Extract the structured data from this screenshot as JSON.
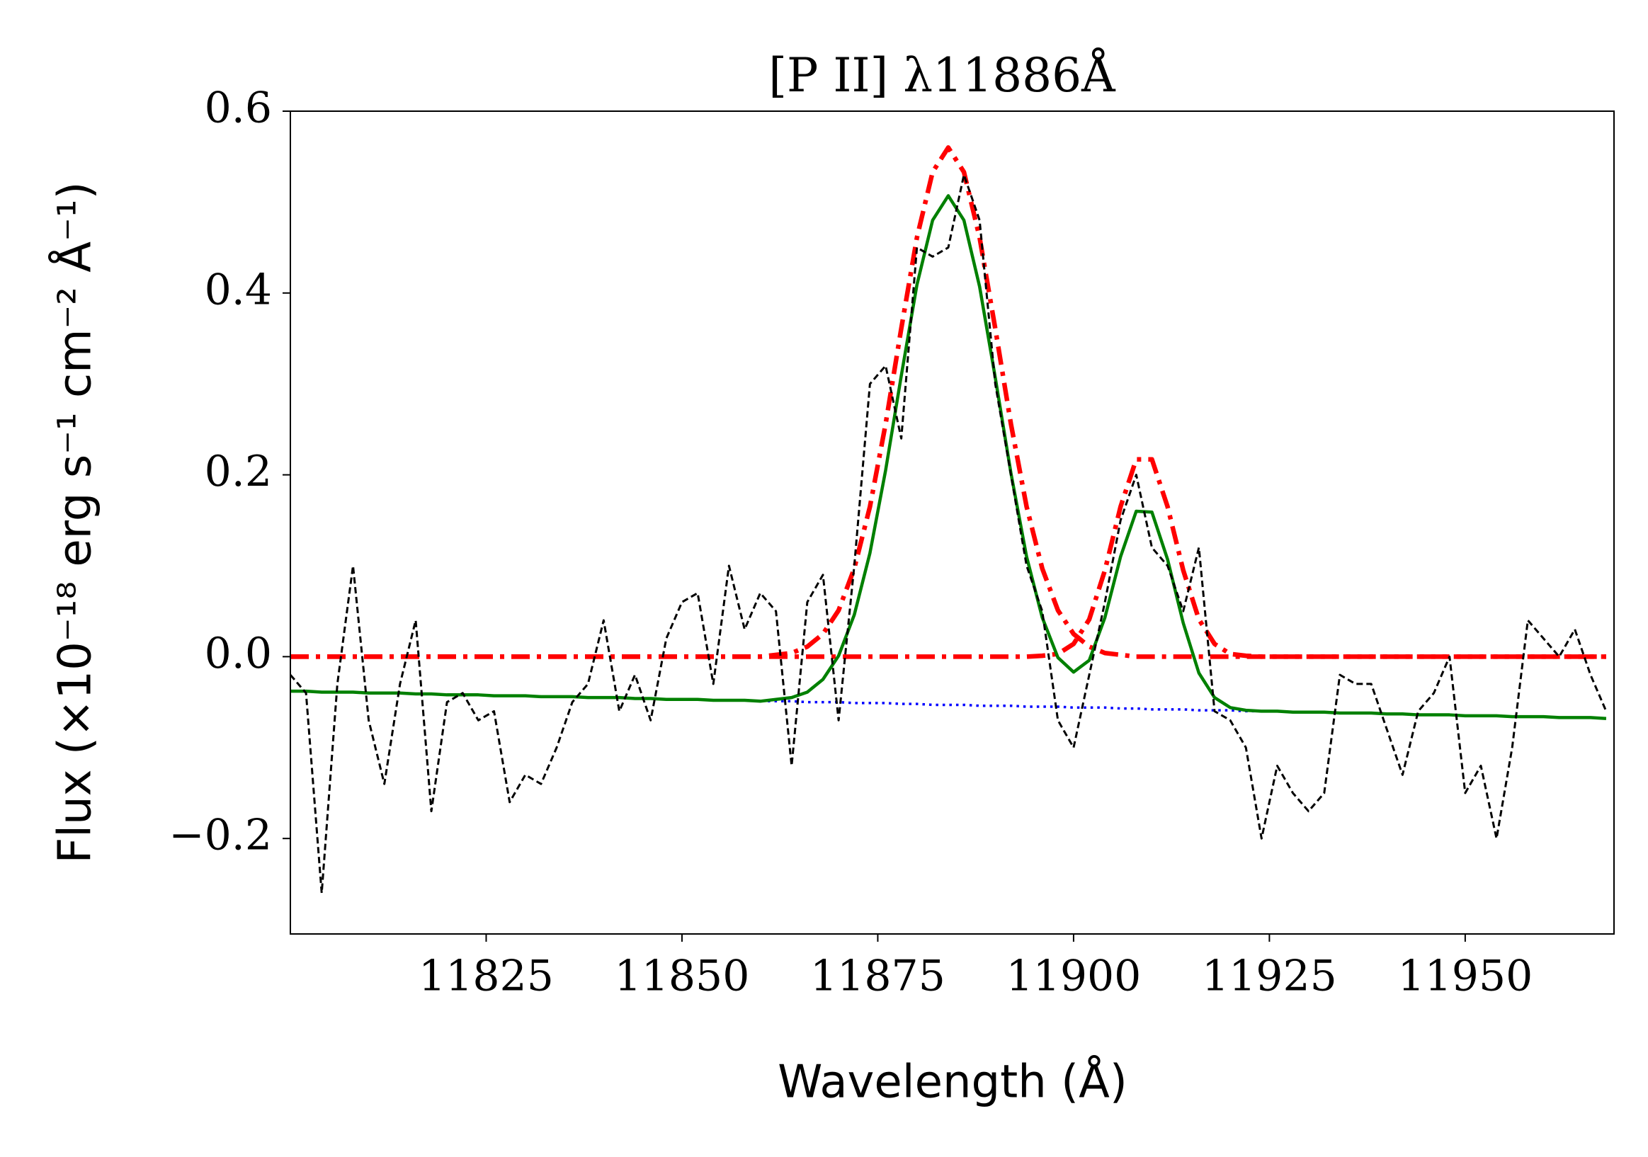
{
  "chart_data": {
    "type": "line",
    "title": "[P II] λ11886Å",
    "x_label": "Wavelength (Å)",
    "y_label": "Flux (×10⁻¹⁸ erg s⁻¹ cm⁻² Å⁻¹)",
    "xlim": [
      11800,
      11969
    ],
    "ylim": [
      -0.305,
      0.6
    ],
    "xticks": [
      11825,
      11850,
      11875,
      11900,
      11925,
      11950
    ],
    "yticks": [
      {
        "value": -0.2,
        "label": "−0.2"
      },
      {
        "value": 0,
        "label": "0.0"
      },
      0.2,
      0.4,
      0.6
    ],
    "x": [
      11800,
      11802,
      11804,
      11806,
      11808,
      11810,
      11812,
      11814,
      11816,
      11818,
      11820,
      11822,
      11824,
      11826,
      11828,
      11830,
      11832,
      11834,
      11836,
      11838,
      11840,
      11842,
      11844,
      11846,
      11848,
      11850,
      11852,
      11854,
      11856,
      11858,
      11860,
      11862,
      11864,
      11866,
      11868,
      11870,
      11872,
      11874,
      11876,
      11878,
      11880,
      11882,
      11884,
      11886,
      11888,
      11890,
      11892,
      11894,
      11896,
      11898,
      11900,
      11902,
      11904,
      11906,
      11908,
      11910,
      11912,
      11914,
      11916,
      11918,
      11920,
      11922,
      11924,
      11926,
      11928,
      11930,
      11932,
      11934,
      11936,
      11938,
      11940,
      11942,
      11944,
      11946,
      11948,
      11950,
      11952,
      11954,
      11956,
      11958,
      11960,
      11962,
      11964,
      11966,
      11968
    ],
    "series": [
      {
        "color": "#ff0000",
        "linestyle": "dashdot",
        "values": [
          0,
          0,
          0,
          0,
          0,
          0,
          0,
          0,
          0,
          0,
          0,
          0,
          0,
          0,
          0,
          0,
          0,
          0,
          0,
          0,
          0,
          0,
          0,
          0,
          0,
          0,
          0,
          0,
          0,
          0,
          0,
          0.002,
          0.004,
          0.011,
          0.025,
          0.051,
          0.097,
          0.165,
          0.256,
          0.361,
          0.461,
          0.533,
          0.56,
          0.533,
          0.461,
          0.361,
          0.256,
          0.165,
          0.097,
          0.051,
          0.025,
          0.011,
          0.004,
          0.002,
          0,
          0,
          0,
          0,
          0,
          0,
          0,
          0,
          0,
          0,
          0,
          0,
          0,
          0,
          0,
          0,
          0,
          0,
          0,
          0,
          0,
          0,
          0,
          0,
          0,
          0,
          0,
          0,
          0,
          0,
          0
        ]
      },
      {
        "color": "#ff0000",
        "linestyle": "dashdot",
        "values": [
          0,
          0,
          0,
          0,
          0,
          0,
          0,
          0,
          0,
          0,
          0,
          0,
          0,
          0,
          0,
          0,
          0,
          0,
          0,
          0,
          0,
          0,
          0,
          0,
          0,
          0,
          0,
          0,
          0,
          0,
          0,
          0,
          0,
          0,
          0,
          0,
          0,
          0,
          0,
          0,
          0,
          0,
          0,
          0,
          0,
          0,
          0,
          0,
          0.001,
          0.003,
          0.014,
          0.041,
          0.095,
          0.165,
          0.217,
          0.217,
          0.165,
          0.095,
          0.041,
          0.014,
          0.003,
          0.001,
          0,
          0,
          0,
          0,
          0,
          0,
          0,
          0,
          0,
          0,
          0,
          0,
          0,
          0,
          0,
          0,
          0,
          0,
          0,
          0,
          0,
          0,
          0
        ]
      },
      {
        "color": "#0000ff",
        "linestyle": "dotted",
        "values": [
          -0.038,
          -0.038,
          -0.039,
          -0.039,
          -0.039,
          -0.04,
          -0.04,
          -0.04,
          -0.041,
          -0.041,
          -0.042,
          -0.042,
          -0.042,
          -0.043,
          -0.043,
          -0.043,
          -0.044,
          -0.044,
          -0.044,
          -0.045,
          -0.045,
          -0.045,
          -0.046,
          -0.046,
          -0.047,
          -0.047,
          -0.047,
          -0.048,
          -0.048,
          -0.048,
          -0.049,
          -0.049,
          -0.049,
          -0.05,
          -0.05,
          -0.05,
          -0.051,
          -0.051,
          -0.051,
          -0.052,
          -0.052,
          -0.053,
          -0.053,
          -0.053,
          -0.054,
          -0.054,
          -0.054,
          -0.055,
          -0.055,
          -0.055,
          -0.056,
          -0.056,
          -0.056,
          -0.057,
          -0.057,
          -0.058,
          -0.058,
          -0.058,
          -0.059,
          -0.059,
          -0.059,
          -0.06,
          -0.06,
          -0.06,
          -0.061,
          -0.061,
          -0.061,
          -0.062,
          -0.062,
          -0.062,
          -0.063,
          -0.063,
          -0.064,
          -0.064,
          -0.064,
          -0.065,
          -0.065,
          -0.065,
          -0.066,
          -0.066,
          -0.066,
          -0.067,
          -0.067,
          -0.067,
          -0.068
        ]
      },
      {
        "color": "#008000",
        "linestyle": "solid",
        "values": [
          -0.038,
          -0.038,
          -0.039,
          -0.039,
          -0.039,
          -0.04,
          -0.04,
          -0.04,
          -0.041,
          -0.041,
          -0.042,
          -0.042,
          -0.042,
          -0.043,
          -0.043,
          -0.043,
          -0.044,
          -0.044,
          -0.044,
          -0.045,
          -0.045,
          -0.045,
          -0.046,
          -0.046,
          -0.047,
          -0.047,
          -0.047,
          -0.048,
          -0.048,
          -0.048,
          -0.049,
          -0.047,
          -0.045,
          -0.039,
          -0.025,
          0.001,
          0.046,
          0.114,
          0.205,
          0.309,
          0.409,
          0.48,
          0.507,
          0.48,
          0.407,
          0.307,
          0.202,
          0.11,
          0.043,
          -0.001,
          -0.017,
          -0.004,
          0.043,
          0.11,
          0.16,
          0.159,
          0.107,
          0.037,
          -0.018,
          -0.045,
          -0.056,
          -0.059,
          -0.06,
          -0.06,
          -0.061,
          -0.061,
          -0.061,
          -0.062,
          -0.062,
          -0.062,
          -0.063,
          -0.063,
          -0.064,
          -0.064,
          -0.064,
          -0.065,
          -0.065,
          -0.065,
          -0.066,
          -0.066,
          -0.066,
          -0.067,
          -0.067,
          -0.067,
          -0.068
        ]
      },
      {
        "color": "#000000",
        "linestyle": "dashed",
        "values": [
          -0.02,
          -0.04,
          -0.26,
          -0.03,
          0.1,
          -0.07,
          -0.14,
          -0.03,
          0.04,
          -0.17,
          -0.05,
          -0.04,
          -0.07,
          -0.06,
          -0.16,
          -0.13,
          -0.14,
          -0.1,
          -0.05,
          -0.03,
          0.04,
          -0.06,
          -0.02,
          -0.07,
          0.02,
          0.06,
          0.07,
          -0.03,
          0.1,
          0.03,
          0.07,
          0.05,
          -0.12,
          0.06,
          0.09,
          -0.07,
          0.1,
          0.3,
          0.32,
          0.24,
          0.45,
          0.44,
          0.45,
          0.53,
          0.48,
          0.3,
          0.2,
          0.1,
          0.05,
          -0.07,
          -0.1,
          -0.02,
          0.06,
          0.15,
          0.2,
          0.12,
          0.1,
          0.05,
          0.12,
          -0.06,
          -0.07,
          -0.1,
          -0.2,
          -0.12,
          -0.15,
          -0.17,
          -0.15,
          -0.02,
          -0.03,
          -0.03,
          -0.08,
          -0.13,
          -0.06,
          -0.04,
          0,
          -0.15,
          -0.12,
          -0.2,
          -0.1,
          0.04,
          0.02,
          0,
          0.03,
          -0.02,
          -0.06
        ]
      }
    ]
  }
}
